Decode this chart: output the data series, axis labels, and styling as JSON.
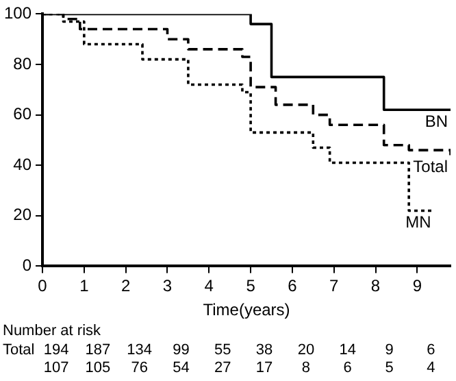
{
  "chart_data": {
    "type": "step",
    "xlabel": "Time(years)",
    "xlim": [
      0,
      9.8
    ],
    "xticks": [
      0,
      1,
      2,
      3,
      4,
      5,
      6,
      7,
      8,
      9
    ],
    "ylim": [
      0,
      100
    ],
    "yticks": [
      0,
      20,
      40,
      60,
      80,
      100
    ],
    "grid": false,
    "legend": false,
    "marker": "none",
    "series": [
      {
        "name": "BN",
        "color": "#000000",
        "line_style": "solid",
        "x": [
          0,
          5.0,
          5.5,
          8.2,
          9.8
        ],
        "values": [
          100,
          96,
          75,
          62,
          62
        ]
      },
      {
        "name": "Total",
        "color": "#000000",
        "line_style": "dashed",
        "x": [
          0,
          0.5,
          0.9,
          3.0,
          3.5,
          4.8,
          5.0,
          5.6,
          6.5,
          6.9,
          8.2,
          8.8,
          9.8
        ],
        "values": [
          100,
          98,
          94,
          90,
          86,
          83,
          71,
          64,
          60,
          56,
          48,
          46,
          44
        ]
      },
      {
        "name": "MN",
        "color": "#000000",
        "line_style": "dotted",
        "x": [
          0,
          0.5,
          1.0,
          2.4,
          3.5,
          4.8,
          5.0,
          6.5,
          6.9,
          8.8,
          9.4
        ],
        "values": [
          100,
          97,
          88,
          82,
          72,
          69,
          53,
          47,
          41,
          22,
          22
        ]
      }
    ],
    "annotations": [
      "Number at risk",
      "Total",
      "194",
      "187",
      "134",
      "99",
      "55",
      "38",
      "20",
      "14",
      "9",
      "6",
      "107",
      "105",
      "76",
      "54",
      "27",
      "17",
      "8",
      "6",
      "5",
      "4"
    ]
  }
}
